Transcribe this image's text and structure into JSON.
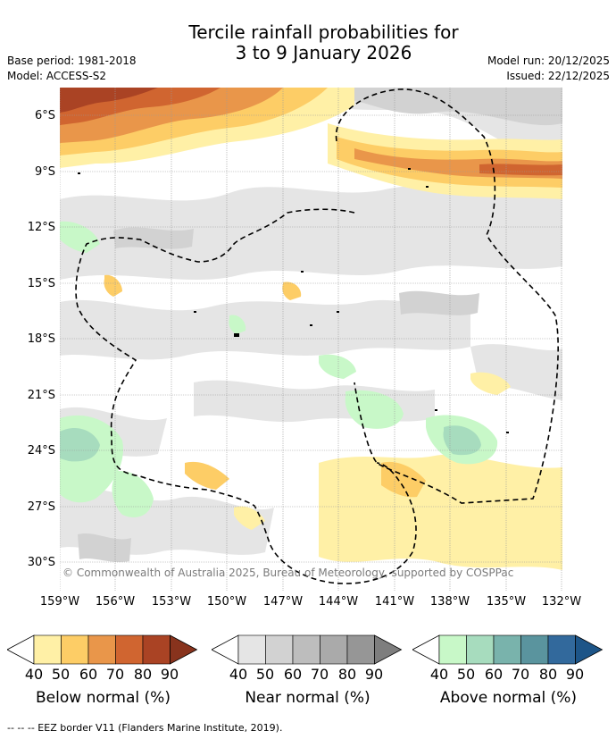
{
  "title": {
    "line1": "Tercile rainfall probabilities for",
    "line2": "3 to 9 January 2026"
  },
  "meta": {
    "base_period": "Base period: 1981-2018",
    "model": "Model: ACCESS-S2",
    "model_run": "Model run: 20/12/2025",
    "issued": "Issued: 22/12/2025"
  },
  "chart_data": {
    "type": "heatmap",
    "title": "Tercile rainfall probabilities for 3 to 9 January 2026",
    "x_axis": {
      "ticks": [
        "159°W",
        "156°W",
        "153°W",
        "150°W",
        "147°W",
        "144°W",
        "141°W",
        "138°W",
        "135°W",
        "132°W"
      ],
      "range": [
        -159,
        -132
      ]
    },
    "y_axis": {
      "ticks": [
        "6°S",
        "9°S",
        "12°S",
        "15°S",
        "18°S",
        "21°S",
        "24°S",
        "27°S",
        "30°S"
      ],
      "range": [
        -31.5,
        -4.5
      ]
    },
    "grid": true,
    "legend": [
      {
        "name": "Below normal (%)",
        "levels": [
          "40",
          "50",
          "60",
          "70",
          "80",
          "90"
        ],
        "colors": [
          "#fff0a6",
          "#fdcd66",
          "#e9964a",
          "#d06530",
          "#aa4324",
          "#88331d"
        ]
      },
      {
        "name": "Near normal (%)",
        "levels": [
          "40",
          "50",
          "60",
          "70",
          "80",
          "90"
        ],
        "colors": [
          "#e5e5e5",
          "#d2d2d2",
          "#bdbdbd",
          "#aaaaaa",
          "#969696",
          "#7e7e7e"
        ]
      },
      {
        "name": "Above normal (%)",
        "levels": [
          "40",
          "50",
          "60",
          "70",
          "80",
          "90"
        ],
        "colors": [
          "#c8f8c8",
          "#a7dcbe",
          "#79b3ac",
          "#5a949e",
          "#32699c",
          "#1d5588"
        ]
      }
    ]
  },
  "credit": "© Commonwealth of Australia 2025, Bureau of Meteorology, supported by COSPPac",
  "footer": "-- -- -- EEZ border V11 (Flanders Marine Institute, 2019)."
}
